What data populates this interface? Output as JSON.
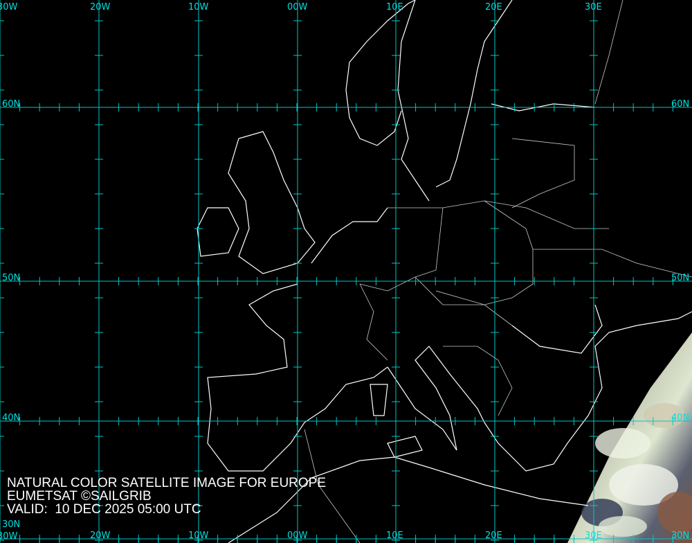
{
  "caption": {
    "title": "NATURAL COLOR SATELLITE IMAGE FOR EUROPE",
    "credit": "EUMETSAT ©SAILGRIB",
    "valid": "VALID:  10 DEC 2025 05:00 UTC"
  },
  "grid": {
    "longitudes": [
      "30W",
      "20W",
      "10W",
      "00W",
      "10E",
      "20E",
      "30E"
    ],
    "latitudes": [
      "60N",
      "50N",
      "40N",
      "30N"
    ]
  },
  "colors": {
    "grid": "#00d0d0",
    "coast": "#ffffff",
    "background": "#000000"
  }
}
